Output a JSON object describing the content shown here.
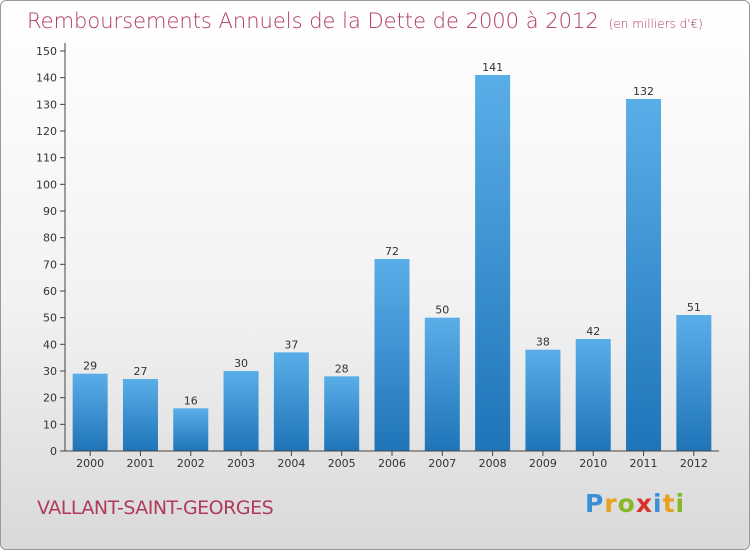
{
  "title": "Remboursements Annuels de la Dette de 2000 à 2012",
  "subtitle": "(en milliers d'€)",
  "location": "VALLANT-SAINT-GEORGES",
  "brand": {
    "text": "Proxiti",
    "letters": [
      {
        "ch": "P",
        "color": "#3a8fd6"
      },
      {
        "ch": "r",
        "color": "#e8a21e"
      },
      {
        "ch": "o",
        "color": "#88b82a"
      },
      {
        "ch": "x",
        "color": "#d8322f"
      },
      {
        "ch": "i",
        "color": "#3a8fd6"
      },
      {
        "ch": "t",
        "color": "#e8a21e"
      },
      {
        "ch": "i",
        "color": "#88b82a"
      }
    ]
  },
  "colors": {
    "title": "#b03a5b",
    "bar_top": "#5aaee8",
    "bar_bottom": "#1f74b8"
  },
  "chart_data": {
    "type": "bar",
    "categories": [
      "2000",
      "2001",
      "2002",
      "2003",
      "2004",
      "2005",
      "2006",
      "2007",
      "2008",
      "2009",
      "2010",
      "2011",
      "2012"
    ],
    "values": [
      29,
      27,
      16,
      30,
      37,
      28,
      72,
      50,
      141,
      38,
      42,
      132,
      51
    ],
    "data_labels": [
      "29",
      "27",
      "16",
      "30",
      "37",
      "28",
      "72",
      "50",
      "141",
      "38",
      "42",
      "132",
      "51"
    ],
    "title": "Remboursements Annuels de la Dette de 2000 à 2012",
    "xlabel": "",
    "ylabel": "",
    "ylim": [
      0,
      150
    ],
    "yticks": [
      0,
      10,
      20,
      30,
      40,
      50,
      60,
      70,
      80,
      90,
      100,
      110,
      120,
      130,
      140,
      150
    ],
    "grid": false
  }
}
